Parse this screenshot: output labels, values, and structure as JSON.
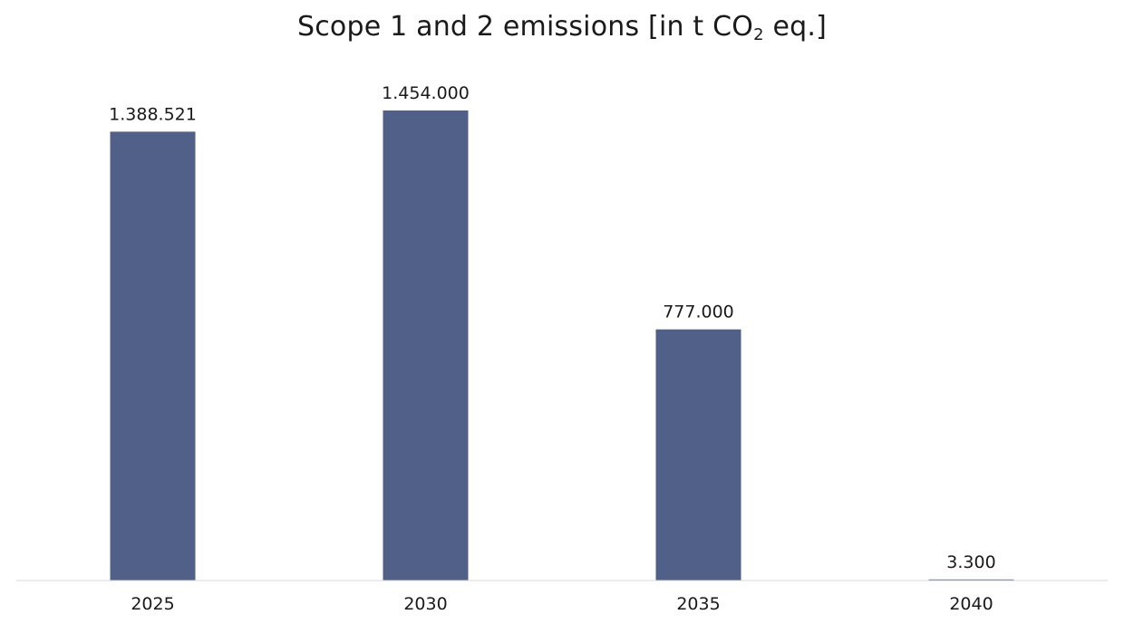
{
  "chart_data": {
    "type": "bar",
    "title": {
      "prefix": "Scope 1 and 2 emissions [in t CO",
      "subscript": "2",
      "suffix": " eq.]"
    },
    "categories": [
      "2025",
      "2030",
      "2035",
      "2040"
    ],
    "values": [
      1388521,
      1454000,
      777000,
      3300
    ],
    "value_labels": [
      "1.388.521",
      "1.454.000",
      "777.000",
      "3.300"
    ],
    "xlabel": "",
    "ylabel": "",
    "ylim": [
      0,
      1454000
    ],
    "grid": false,
    "legend": "none",
    "bar_color": "#506089",
    "axis_color": "#d9d9d9"
  }
}
